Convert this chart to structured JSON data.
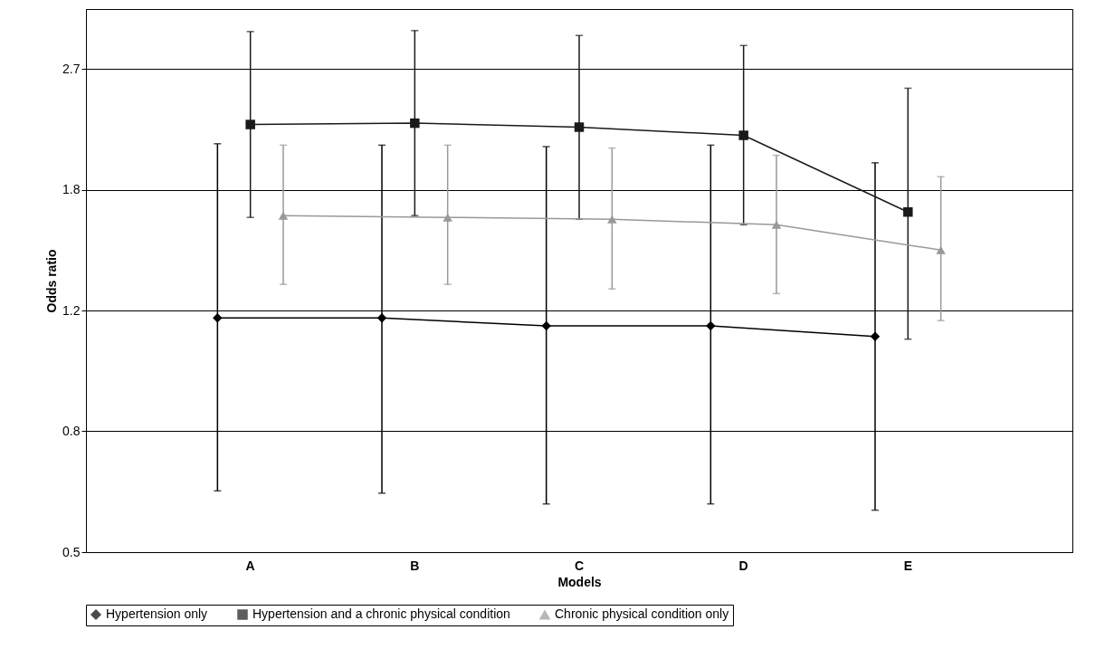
{
  "chart_data": {
    "type": "line",
    "xlabel": "Models",
    "ylabel": "Odds ratio",
    "categories": [
      "A",
      "B",
      "C",
      "D",
      "E"
    ],
    "series": [
      {
        "name": "Hypertension only",
        "color": "#000000",
        "marker": "diamond",
        "values": [
          1.17,
          1.17,
          1.14,
          1.14,
          1.1
        ],
        "errors": [
          [
            0.655,
            2.1
          ],
          [
            0.65,
            2.09
          ],
          [
            0.627,
            2.08
          ],
          [
            0.627,
            2.09
          ],
          [
            0.614,
            1.97
          ]
        ]
      },
      {
        "name": "Hypertension and a chronic physical condition",
        "color": "#1a1a1a",
        "marker": "square",
        "values": [
          2.24,
          2.25,
          2.22,
          2.16,
          1.67
        ],
        "errors": [
          [
            1.64,
            3.06
          ],
          [
            1.65,
            3.07
          ],
          [
            1.63,
            3.02
          ],
          [
            1.6,
            2.92
          ],
          [
            1.09,
            2.53
          ]
        ]
      },
      {
        "name": "Chronic physical condition only",
        "color": "#999999",
        "marker": "triangle",
        "values": [
          1.65,
          1.64,
          1.63,
          1.6,
          1.47
        ],
        "errors": [
          [
            1.31,
            2.09
          ],
          [
            1.31,
            2.09
          ],
          [
            1.29,
            2.07
          ],
          [
            1.27,
            2.02
          ],
          [
            1.16,
            1.88
          ]
        ]
      }
    ],
    "log": true,
    "ylim": [
      0.5333,
      3.3
    ],
    "yticks": [
      {
        "value": 0.5333,
        "label": "0.5"
      },
      0.8,
      1.2,
      1.8,
      2.7
    ],
    "grid": "y",
    "legend": "bottom",
    "line_style": "solid"
  }
}
